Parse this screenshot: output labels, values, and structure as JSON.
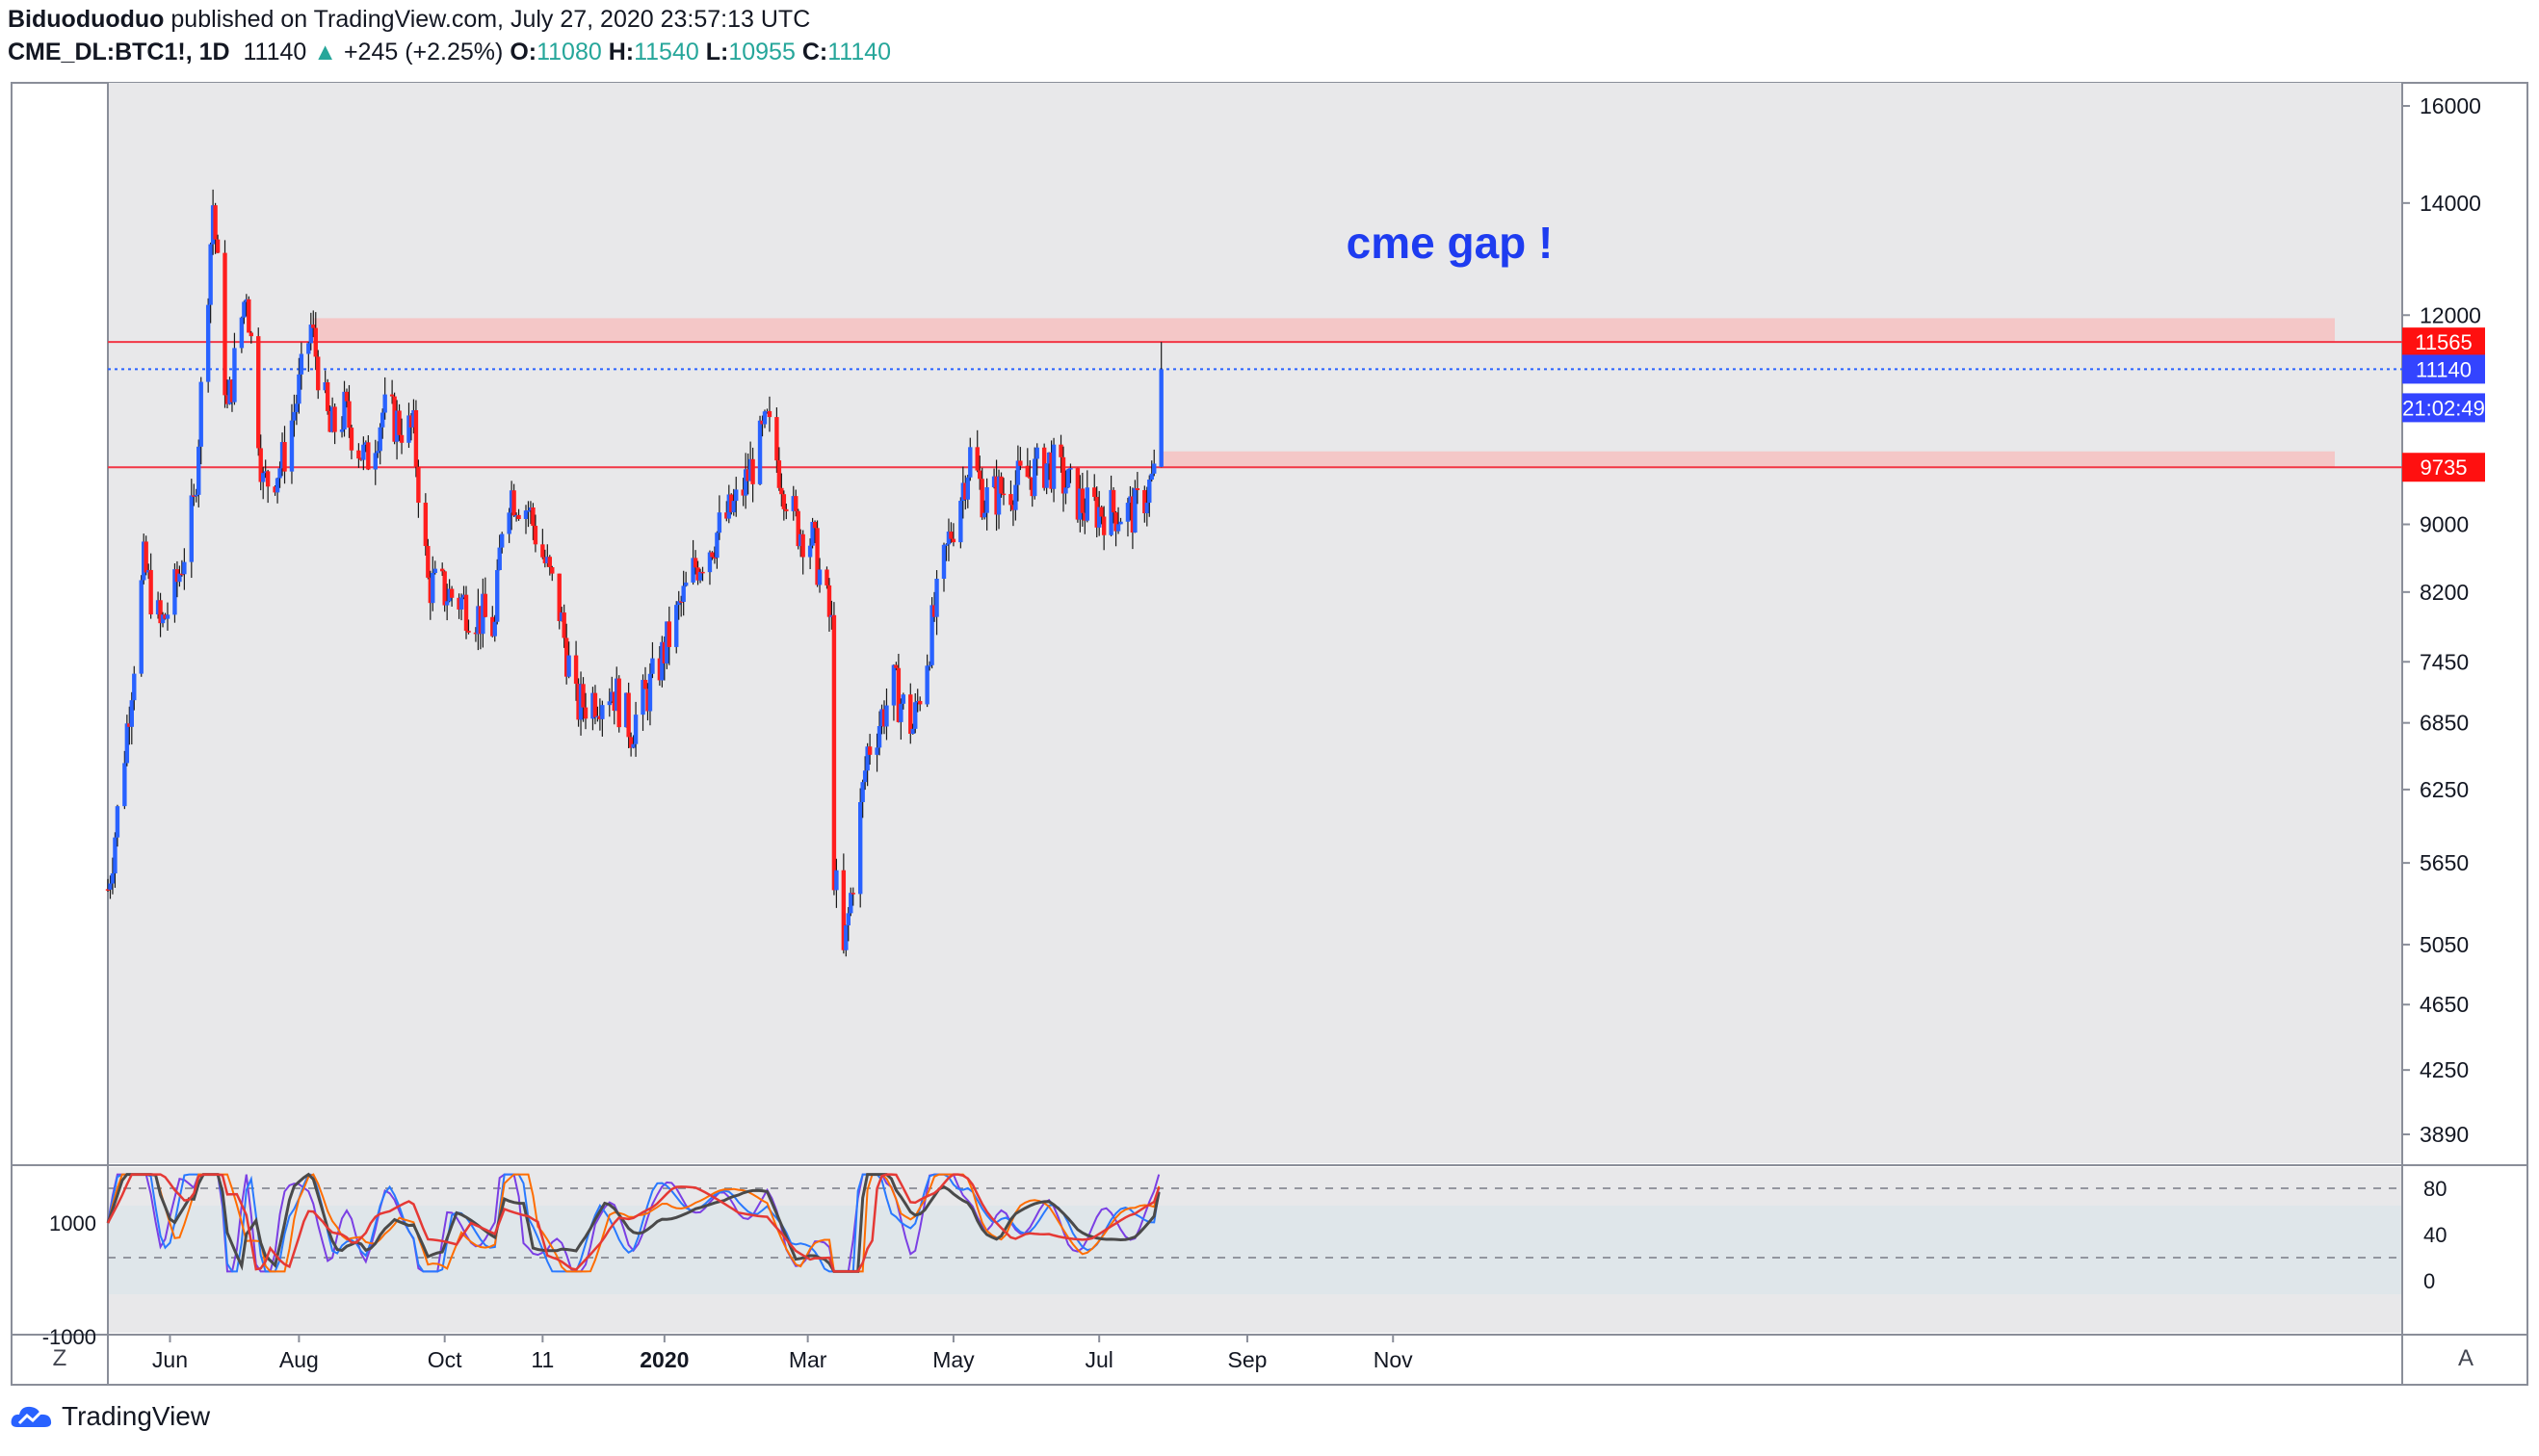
{
  "header": {
    "author": "Biduoduoduo",
    "published_text": "published on TradingView.com, July 27, 2020 23:57:13 UTC",
    "symbol": "CME_DL:BTC1!, 1D",
    "last": "11140",
    "arrow": "▲",
    "change": "+245 (+2.25%)",
    "o_label": "O:",
    "o_value": "11080",
    "h_label": "H:",
    "h_value": "11540",
    "l_label": "L:",
    "l_value": "10955",
    "c_label": "C:",
    "c_value": "11140"
  },
  "annotation": "cme gap !",
  "footer": {
    "brand": "TradingView"
  },
  "buttons": {
    "left": "Z",
    "right": "A"
  },
  "colors": {
    "up": "#2962ff",
    "down": "#ff1e1e",
    "bg": "#e8e8ea",
    "gap_zone": "#f4c7c7",
    "level_line": "#f23645",
    "last_line": "#2962ff",
    "annotation": "#1e3cf0"
  },
  "chart_data": [
    {
      "type": "candlestick",
      "title": "CME_DL:BTC1!, 1D",
      "scale": "log",
      "ylim": [
        3700,
        16500
      ],
      "y_ticks": [
        3890,
        4250,
        4650,
        5050,
        5650,
        6250,
        6850,
        7450,
        8200,
        9000,
        12000,
        14000,
        16000
      ],
      "x_ticks": [
        "Jun",
        "Aug",
        "Oct",
        "11",
        "2020",
        "Mar",
        "May",
        "Jul",
        "Sep",
        "Nov"
      ],
      "levels": [
        {
          "label": "11565",
          "value": 11565,
          "style": "solid-red"
        },
        {
          "label": "11140",
          "value": 11140,
          "style": "dotted-blue"
        },
        {
          "label": "9735",
          "value": 9735,
          "style": "solid-red"
        }
      ],
      "countdown_label": "21:02:49",
      "gap_zones": [
        {
          "from": 11565,
          "to": 11950,
          "start": "Aug 2019",
          "end": "Oct 2020"
        },
        {
          "from": 9735,
          "to": 9950,
          "start": "Jul 2020",
          "end": "Oct 2020"
        }
      ],
      "series": [
        {
          "name": "close (approx, daily)",
          "dates_start": "2019-05-13",
          "dates_end": "2020-07-27",
          "anchors": [
            [
              "2019-05-13",
              5450
            ],
            [
              "2019-05-18",
              6200
            ],
            [
              "2019-05-28",
              8500
            ],
            [
              "2019-06-04",
              7800
            ],
            [
              "2019-06-10",
              8200
            ],
            [
              "2019-06-18",
              9200
            ],
            [
              "2019-06-26",
              14000
            ],
            [
              "2019-07-02",
              10500
            ],
            [
              "2019-07-10",
              12500
            ],
            [
              "2019-07-17",
              9500
            ],
            [
              "2019-07-25",
              9800
            ],
            [
              "2019-08-02",
              11000
            ],
            [
              "2019-08-06",
              11800
            ],
            [
              "2019-08-14",
              10200
            ],
            [
              "2019-08-20",
              10500
            ],
            [
              "2019-08-29",
              9800
            ],
            [
              "2019-09-05",
              10500
            ],
            [
              "2019-09-18",
              10200
            ],
            [
              "2019-09-24",
              8300
            ],
            [
              "2019-10-08",
              8100
            ],
            [
              "2019-10-22",
              7800
            ],
            [
              "2019-10-26",
              9500
            ],
            [
              "2019-11-05",
              9200
            ],
            [
              "2019-11-18",
              8000
            ],
            [
              "2019-11-25",
              7000
            ],
            [
              "2019-12-10",
              7200
            ],
            [
              "2019-12-18",
              6800
            ],
            [
              "2019-12-28",
              7300
            ],
            [
              "2020-01-14",
              8500
            ],
            [
              "2020-02-01",
              9300
            ],
            [
              "2020-02-13",
              10300
            ],
            [
              "2020-02-25",
              9000
            ],
            [
              "2020-03-03",
              8800
            ],
            [
              "2020-03-11",
              7800
            ],
            [
              "2020-03-12",
              5600
            ],
            [
              "2020-03-16",
              4950
            ],
            [
              "2020-03-26",
              6600
            ],
            [
              "2020-04-06",
              7200
            ],
            [
              "2020-04-14",
              6800
            ],
            [
              "2020-04-29",
              8800
            ],
            [
              "2020-05-08",
              9900
            ],
            [
              "2020-05-14",
              9300
            ],
            [
              "2020-06-01",
              9600
            ],
            [
              "2020-06-10",
              9800
            ],
            [
              "2020-06-25",
              9200
            ],
            [
              "2020-07-16",
              9150
            ],
            [
              "2020-07-24",
              9600
            ],
            [
              "2020-07-27",
              11140
            ]
          ]
        }
      ]
    },
    {
      "type": "line",
      "title": "oscillator (upper-left axis)",
      "ylim": [
        -1000,
        1000
      ],
      "y_ticks": [
        1000,
        -1000
      ],
      "right_ylim": [
        0,
        100
      ],
      "right_ticks": [
        80,
        40,
        0
      ],
      "dashed_levels": [
        80,
        20
      ]
    }
  ]
}
